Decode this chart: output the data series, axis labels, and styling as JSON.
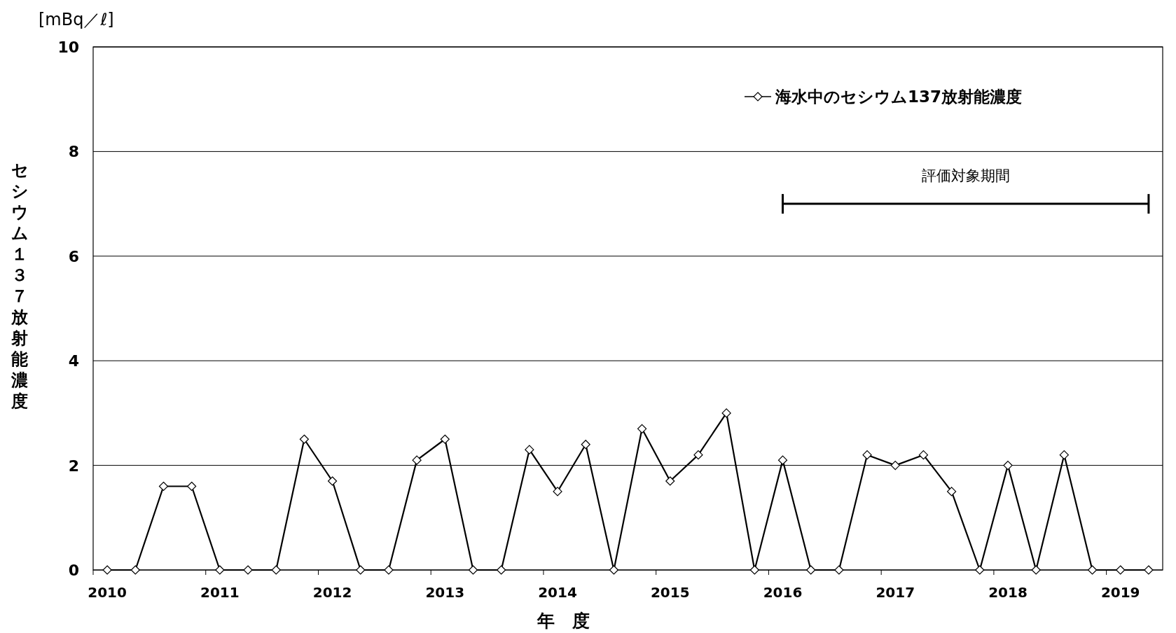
{
  "chart_data": {
    "type": "line",
    "xlabel": "年　度",
    "ylabel": "セシウム１３７放射能濃度",
    "annotations": [
      "[mBq／ℓ]",
      {
        "text": "評価対象期間",
        "x": 2017.625,
        "y": 7
      }
    ],
    "x": [
      2010,
      2010.25,
      2010.5,
      2010.75,
      2011,
      2011.25,
      2011.5,
      2011.75,
      2012,
      2012.25,
      2012.5,
      2012.75,
      2013,
      2013.25,
      2013.5,
      2013.75,
      2014,
      2014.25,
      2014.5,
      2014.75,
      2015,
      2015.25,
      2015.5,
      2015.75,
      2016,
      2016.25,
      2016.5,
      2016.75,
      2017,
      2017.25,
      2017.5,
      2017.75,
      2018,
      2018.25,
      2018.5,
      2018.75,
      2019,
      2019.25
    ],
    "series": [
      {
        "name": "海水中のセシウム137放射能濃度",
        "color": "#000000",
        "values": [
          0,
          0,
          1.6,
          1.6,
          0,
          0,
          0,
          2.5,
          1.7,
          0,
          0,
          2.1,
          2.5,
          0,
          0,
          2.3,
          1.5,
          2.4,
          0,
          2.7,
          1.7,
          2.2,
          3.0,
          0,
          2.1,
          0,
          0,
          2.2,
          2.0,
          2.2,
          1.5,
          0,
          2.0,
          0,
          2.2,
          0,
          0,
          0
        ]
      },
      {
        "type": "line",
        "color": "#000000",
        "marker": "none",
        "x": [
          2016,
          2019.25
        ],
        "values": [
          7,
          7
        ]
      }
    ],
    "xlim": [
      2009.875,
      2019.375
    ],
    "xticks": [
      {
        "value": 2009.875,
        "label": null
      },
      2010,
      {
        "value": 2010.875,
        "label": null
      },
      2011,
      {
        "value": 2011.875,
        "label": null
      },
      2012,
      {
        "value": 2012.875,
        "label": null
      },
      2013,
      {
        "value": 2013.875,
        "label": null
      },
      2014,
      {
        "value": 2014.875,
        "label": null
      },
      2015,
      {
        "value": 2015.875,
        "label": null
      },
      2016,
      {
        "value": 2016.875,
        "label": null
      },
      2017,
      {
        "value": 2017.875,
        "label": null
      },
      2018,
      {
        "value": 2018.875,
        "label": null
      },
      2019
    ],
    "ylim": [
      0,
      10
    ],
    "yticks": [
      0,
      2,
      4,
      6,
      8,
      10
    ],
    "grid": "y",
    "legend": "top right",
    "marker": "diamond",
    "line_style": "solid"
  }
}
